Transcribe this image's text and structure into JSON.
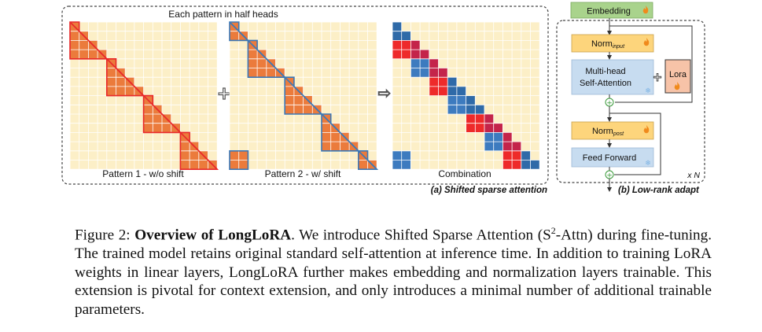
{
  "panel_a": {
    "header": "Each pattern in half heads",
    "pattern1_label": "Pattern 1 - w/o shift",
    "pattern2_label": "Pattern 2 - w/ shift",
    "combination_label": "Combination",
    "plus_symbol": "+",
    "arrow_symbol": "⇨",
    "caption": "(a) Shifted sparse attention",
    "grid_cells": 16,
    "group_size": 4,
    "shift": 2
  },
  "panel_b": {
    "embedding": "Embedding",
    "norm_input_main": "Norm",
    "norm_input_sub": "input",
    "mha_line1": "Multi-head",
    "mha_line2": "Self-Attention",
    "lora": "Lora",
    "plus_symbol": "+",
    "norm_post_main": "Norm",
    "norm_post_sub": "post",
    "feed_forward": "Feed Forward",
    "repeat": "x N",
    "caption": "(b) Low-rank adapt",
    "fire_icon": "fire-icon",
    "snowflake_icon": "snowflake-icon"
  },
  "colors": {
    "grid_bg": "#fcefc7",
    "orange": "#eb7b3c",
    "red": "#e8282a",
    "blue": "#3a78b8",
    "combo_red": "#ee2a2a",
    "combo_blue": "#3d7bbf",
    "green_box": "#a9d38c",
    "yellow_box": "#fdd57c",
    "blue_box": "#c7dcf0",
    "lora_box": "#f7c3a8"
  },
  "caption": {
    "figure_number": "Figure 2:",
    "title": "Overview of LongLoRA",
    "text_before_sup": ". We introduce Shifted Sparse Attention (S",
    "sup": "2",
    "text_after_sup": "-Attn) during fine-tuning. The trained model retains original standard self-attention at inference time. In addition to training LoRA weights in linear layers, LongLoRA further makes embedding and normalization layers trainable.  This extension is pivotal for context extension, and only introduces a minimal number of additional trainable parameters."
  }
}
